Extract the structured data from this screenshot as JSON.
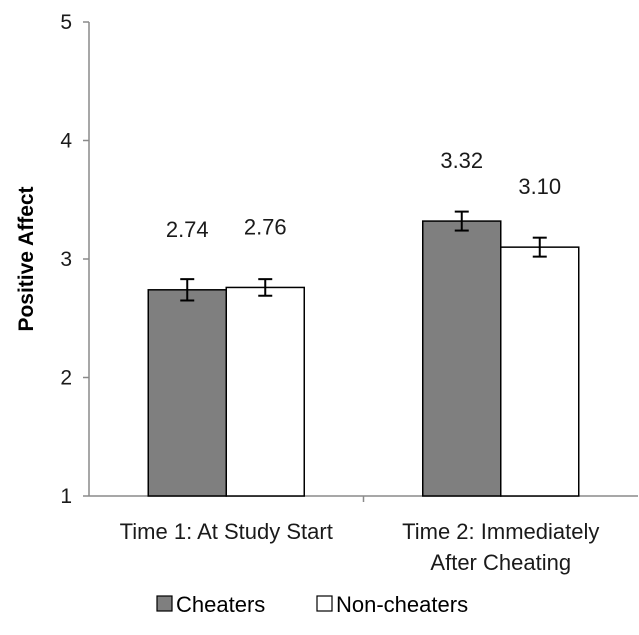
{
  "chart_data": {
    "type": "bar",
    "title": "",
    "xlabel": "",
    "ylabel": "Positive Affect",
    "ylim": [
      1,
      5
    ],
    "yticks": [
      "1",
      "2",
      "3",
      "4",
      "5"
    ],
    "categories": [
      [
        "Time 1: At Study Start"
      ],
      [
        "Time 2: Immediately",
        "After Cheating"
      ]
    ],
    "series": [
      {
        "name": "Cheaters",
        "values": [
          2.74,
          3.32
        ],
        "labels": [
          "2.74",
          "3.32"
        ],
        "error": [
          0.09,
          0.08
        ],
        "color": "#7f7f7f"
      },
      {
        "name": "Non-cheaters",
        "values": [
          2.76,
          3.1
        ],
        "labels": [
          "2.76",
          "3.10"
        ],
        "error": [
          0.07,
          0.08
        ],
        "color": "#ffffff"
      }
    ],
    "grid": false,
    "legend_position": "bottom"
  }
}
